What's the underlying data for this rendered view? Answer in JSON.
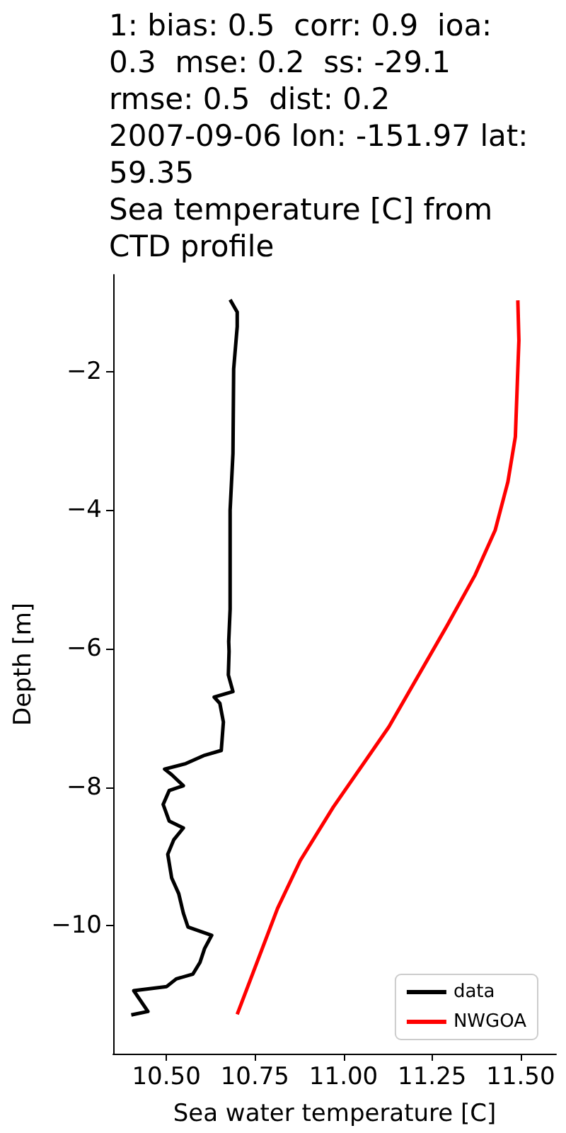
{
  "chart_data": {
    "type": "line",
    "title": "1: bias: 0.5  corr: 0.9  ioa:\n0.3  mse: 0.2  ss: -29.1\nrmse: 0.5  dist: 0.2\n2007-09-06 lon: -151.97 lat:\n59.35\nSea temperature [C] from\nCTD profile",
    "xlabel": "Sea water temperature [C]",
    "ylabel": "Depth [m]",
    "series": [
      {
        "name": "data",
        "color": "#000000",
        "x": [
          10.68,
          10.7,
          10.7,
          10.69,
          10.688,
          10.68,
          10.68,
          10.676,
          10.677,
          10.675,
          10.688,
          10.635,
          10.651,
          10.661,
          10.655,
          10.608,
          10.555,
          10.495,
          10.515,
          10.548,
          10.508,
          10.491,
          10.508,
          10.548,
          10.521,
          10.504,
          10.515,
          10.535,
          10.548,
          10.561,
          10.628,
          10.608,
          10.595,
          10.575,
          10.528,
          10.501,
          10.408,
          10.448,
          10.401
        ],
        "values": [
          -0.96,
          -1.14,
          -1.35,
          -1.96,
          -3.18,
          -4.0,
          -5.43,
          -5.9,
          -6.04,
          -6.38,
          -6.62,
          -6.7,
          -6.79,
          -7.06,
          -7.47,
          -7.54,
          -7.66,
          -7.74,
          -7.82,
          -7.98,
          -8.05,
          -8.25,
          -8.49,
          -8.59,
          -8.76,
          -8.97,
          -9.31,
          -9.54,
          -9.82,
          -10.02,
          -10.14,
          -10.33,
          -10.53,
          -10.7,
          -10.77,
          -10.88,
          -10.94,
          -11.24,
          -11.29
        ]
      },
      {
        "name": "NWGOA",
        "color": "#ff0000",
        "x": [
          11.492,
          11.495,
          11.485,
          11.464,
          11.428,
          11.371,
          11.292,
          11.128,
          10.971,
          10.878,
          10.814,
          10.7
        ],
        "values": [
          -0.97,
          -1.55,
          -2.94,
          -3.59,
          -4.29,
          -4.94,
          -5.67,
          -7.13,
          -8.29,
          -9.06,
          -9.75,
          -11.28
        ]
      }
    ],
    "xlim": [
      10.35,
      11.6
    ],
    "xticks": [
      {
        "value": 10.5,
        "label": "10.50"
      },
      {
        "value": 10.75,
        "label": "10.75"
      },
      {
        "value": 11.0,
        "label": "11.00"
      },
      {
        "value": 11.25,
        "label": "11.25"
      },
      {
        "value": 11.5,
        "label": "11.50"
      }
    ],
    "ylim": [
      -11.85,
      -0.6
    ],
    "yticks": [
      {
        "value": -10,
        "label": "−10"
      },
      {
        "value": -8,
        "label": "−8"
      },
      {
        "value": -6,
        "label": "−6"
      },
      {
        "value": -4,
        "label": "−4"
      },
      {
        "value": -2,
        "label": "−2"
      }
    ],
    "grid": false,
    "legend": "bottom right",
    "marker": "none",
    "line_style": "solid"
  }
}
